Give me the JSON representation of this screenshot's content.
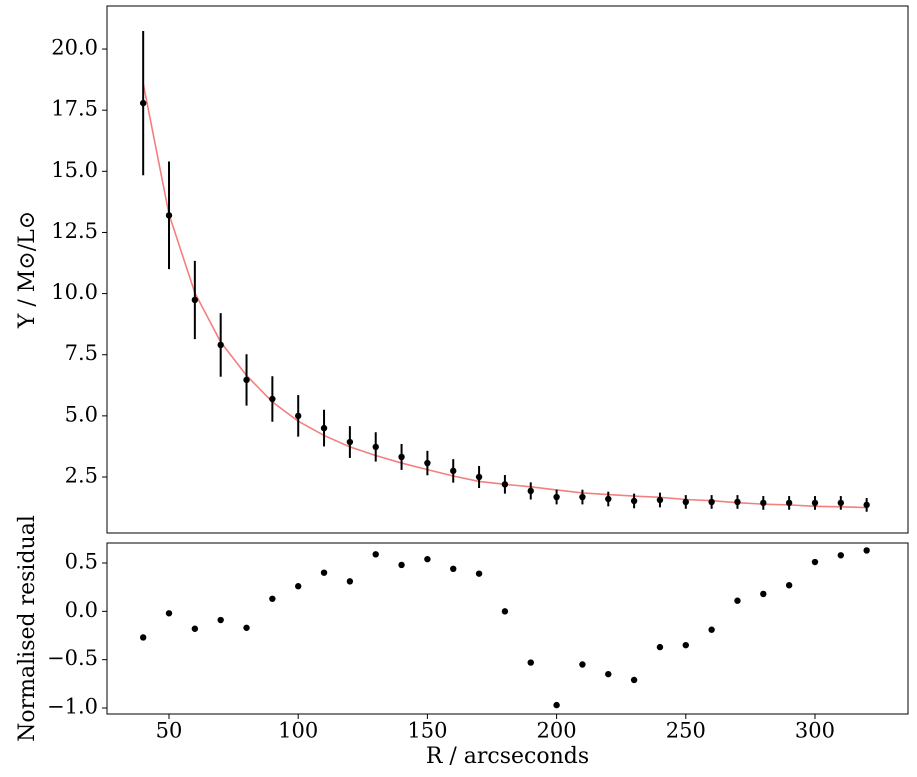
{
  "chart_data": [
    {
      "type": "scatter",
      "ylabel": "Υ / M⊙/L⊙",
      "x": [
        40,
        50,
        60,
        70,
        80,
        90,
        100,
        110,
        120,
        130,
        140,
        150,
        160,
        170,
        180,
        190,
        200,
        210,
        220,
        230,
        240,
        250,
        260,
        270,
        280,
        290,
        300,
        310,
        320
      ],
      "series": [
        {
          "type": "errorbar",
          "color": "#000000",
          "values": [
            17.79,
            13.2,
            9.74,
            7.9,
            6.47,
            5.69,
            5.0,
            4.5,
            3.93,
            3.73,
            3.32,
            3.07,
            2.75,
            2.5,
            2.2,
            1.93,
            1.68,
            1.68,
            1.6,
            1.52,
            1.56,
            1.48,
            1.48,
            1.48,
            1.44,
            1.44,
            1.44,
            1.44,
            1.36
          ],
          "errors": [
            2.95,
            2.2,
            1.6,
            1.3,
            1.05,
            0.93,
            0.85,
            0.75,
            0.65,
            0.6,
            0.53,
            0.5,
            0.48,
            0.45,
            0.38,
            0.35,
            0.3,
            0.3,
            0.3,
            0.3,
            0.3,
            0.28,
            0.28,
            0.28,
            0.28,
            0.28,
            0.28,
            0.28,
            0.28
          ]
        },
        {
          "type": "line",
          "color": "#f47f7f",
          "values": [
            18.6,
            13.24,
            10.03,
            8.02,
            6.65,
            5.57,
            4.78,
            4.2,
            3.73,
            3.38,
            3.07,
            2.8,
            2.54,
            2.32,
            2.2,
            2.1,
            1.97,
            1.85,
            1.78,
            1.72,
            1.67,
            1.58,
            1.53,
            1.45,
            1.39,
            1.36,
            1.3,
            1.28,
            1.25
          ]
        }
      ],
      "xlim": [
        26,
        336
      ],
      "ylim": [
        0.21,
        21.76
      ],
      "yticks": [
        {
          "value": 5,
          "label": "5.0"
        },
        2.5,
        7.5,
        {
          "value": 10,
          "label": "10.0"
        },
        12.5,
        {
          "value": 15,
          "label": "15.0"
        },
        17.5,
        {
          "value": 20,
          "label": "20.0"
        }
      ]
    },
    {
      "type": "scatter",
      "ylabel": "Normalised residual",
      "xlabel": "R / arcseconds",
      "x": [
        40,
        50,
        60,
        70,
        80,
        90,
        100,
        110,
        120,
        130,
        140,
        150,
        160,
        170,
        180,
        190,
        200,
        210,
        220,
        230,
        240,
        250,
        260,
        270,
        280,
        290,
        300,
        310,
        320
      ],
      "series": [
        {
          "type": "points",
          "color": "#000000",
          "values": [
            -0.27,
            -0.02,
            -0.18,
            -0.09,
            -0.17,
            0.13,
            0.26,
            0.4,
            0.31,
            0.59,
            0.48,
            0.54,
            0.44,
            0.39,
            0.0,
            -0.53,
            -0.97,
            -0.55,
            -0.65,
            -0.71,
            -0.37,
            -0.35,
            -0.19,
            0.11,
            0.18,
            0.27,
            0.51,
            0.58,
            0.63
          ]
        }
      ],
      "xlim": [
        26,
        336
      ],
      "ylim": [
        -1.062,
        0.707
      ],
      "xticks": [
        50,
        100,
        150,
        200,
        250,
        300
      ],
      "yticks": [
        {
          "value": -1,
          "label": "−1.0"
        },
        {
          "value": -0.5,
          "label": "−0.5"
        },
        {
          "value": 0,
          "label": "0.0"
        },
        0.5
      ]
    }
  ]
}
